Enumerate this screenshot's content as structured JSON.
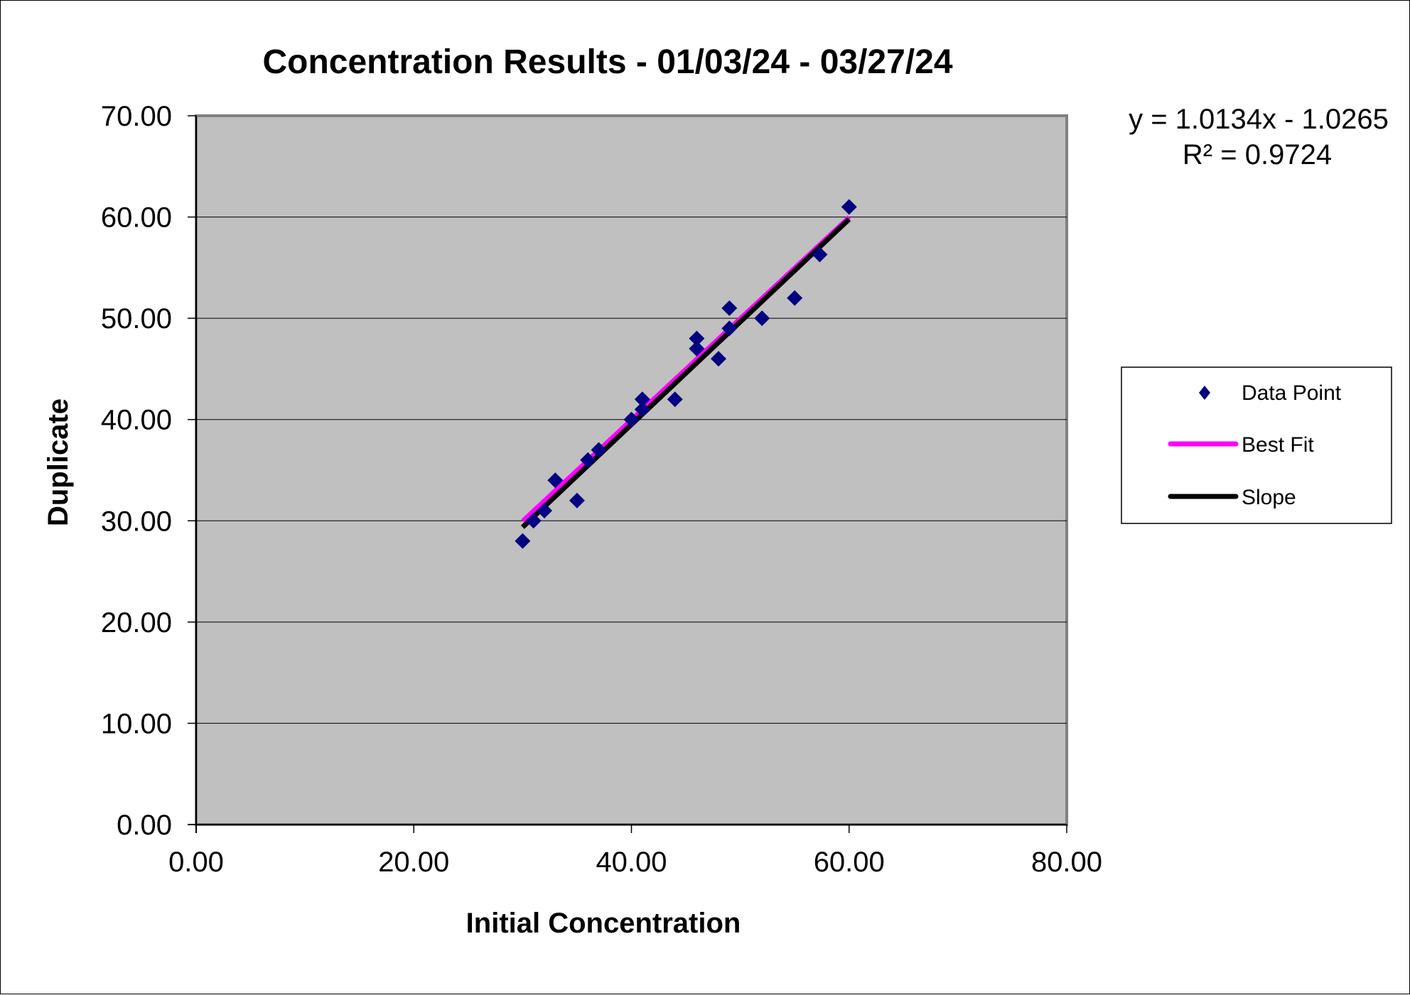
{
  "chart_data": {
    "type": "scatter",
    "title": "Concentration Results - 01/03/24 - 03/27/24",
    "xlabel": "Initial Concentration",
    "ylabel": "Duplicate",
    "xlim": [
      0,
      80
    ],
    "ylim": [
      0,
      70
    ],
    "x_ticks": [
      "0.00",
      "20.00",
      "40.00",
      "60.00",
      "80.00"
    ],
    "y_ticks": [
      "0.00",
      "10.00",
      "20.00",
      "30.00",
      "40.00",
      "50.00",
      "60.00",
      "70.00"
    ],
    "grid": "horizontal major gridlines",
    "plot_background": "#c0c0c0",
    "legend_position": "right",
    "trendline_equation": "y = 1.0134x - 1.0265",
    "r_squared": "R² = 0.9724",
    "series": [
      {
        "name": "Data Point",
        "kind": "markers",
        "marker": "diamond",
        "color": "#000080",
        "points": [
          [
            30.0,
            28.0
          ],
          [
            31.0,
            30.0
          ],
          [
            32.0,
            31.0
          ],
          [
            33.0,
            34.0
          ],
          [
            35.0,
            32.0
          ],
          [
            36.0,
            36.0
          ],
          [
            37.0,
            37.0
          ],
          [
            40.0,
            40.0
          ],
          [
            41.0,
            41.0
          ],
          [
            41.0,
            42.0
          ],
          [
            44.0,
            42.0
          ],
          [
            46.0,
            47.0
          ],
          [
            46.0,
            48.0
          ],
          [
            48.0,
            46.0
          ],
          [
            49.0,
            49.0
          ],
          [
            49.0,
            51.0
          ],
          [
            52.0,
            50.0
          ],
          [
            55.0,
            52.0
          ],
          [
            57.3,
            56.3
          ],
          [
            60.0,
            61.0
          ]
        ]
      },
      {
        "name": "Best Fit",
        "kind": "line",
        "color": "#ff00ff",
        "points": [
          [
            30.0,
            30.0
          ],
          [
            60.0,
            60.0
          ]
        ]
      },
      {
        "name": "Slope",
        "kind": "line",
        "color": "#000000",
        "points": [
          [
            30.0,
            29.37
          ],
          [
            60.0,
            59.78
          ]
        ]
      }
    ]
  }
}
